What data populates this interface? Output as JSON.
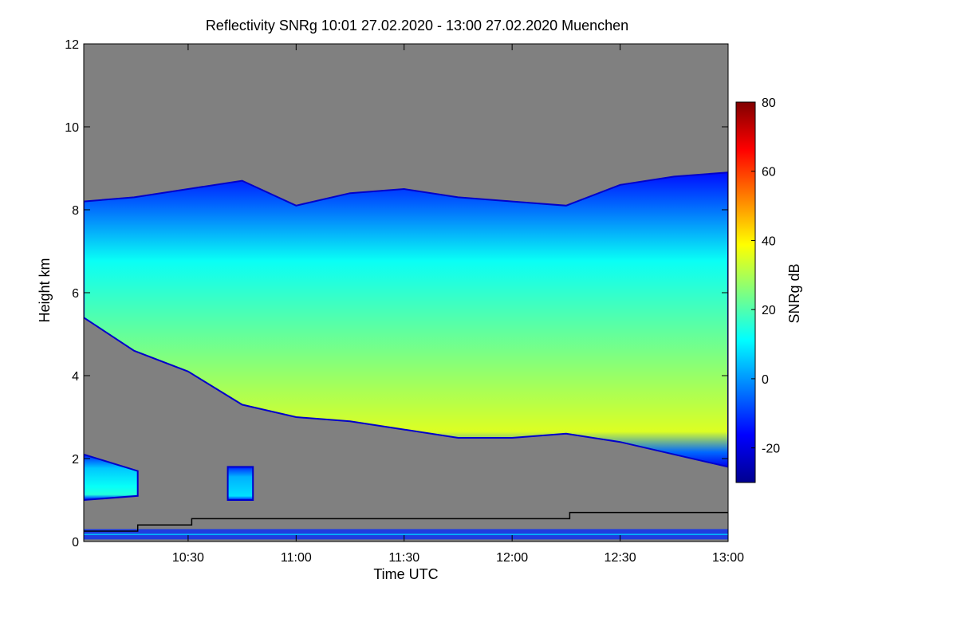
{
  "chart_data": {
    "type": "heatmap",
    "title": "Reflectivity SNRg   10:01 27.02.2020 - 13:00 27.02.2020 Muenchen",
    "xlabel": "Time UTC",
    "ylabel": "Height km",
    "x_range": [
      "10:01",
      "13:00"
    ],
    "x_ticks": [
      "10:30",
      "11:00",
      "11:30",
      "12:00",
      "12:30",
      "13:00"
    ],
    "ylim": [
      0,
      12
    ],
    "y_ticks": [
      0,
      2,
      4,
      6,
      8,
      10,
      12
    ],
    "colorbar": {
      "label": "SNRg dB",
      "range": [
        -30,
        80
      ],
      "ticks": [
        -20,
        0,
        20,
        40,
        60,
        80
      ],
      "colormap": "jet"
    },
    "background_color": "#808080",
    "layers": [
      {
        "feature": "cloud",
        "time": [
          "10:01",
          "10:15",
          "10:30",
          "10:45",
          "11:00",
          "11:15",
          "11:30",
          "11:45",
          "12:00",
          "12:15",
          "12:30",
          "12:45",
          "13:00"
        ],
        "top_km": [
          8.2,
          8.3,
          8.5,
          8.7,
          8.1,
          8.4,
          8.5,
          8.3,
          8.2,
          8.1,
          8.6,
          8.8,
          8.9
        ],
        "base_km": [
          5.4,
          4.6,
          4.1,
          3.3,
          3.0,
          2.9,
          2.7,
          2.5,
          2.5,
          2.6,
          2.4,
          2.1,
          1.8
        ],
        "peak_snr_db": 35
      },
      {
        "feature": "low-cloud-patch",
        "time": [
          "10:01",
          "10:16"
        ],
        "top_km": [
          2.1,
          1.7
        ],
        "base_km": [
          1.0,
          1.1
        ],
        "peak_snr_db": 15
      },
      {
        "feature": "low-cloud-patch",
        "time": [
          "10:41",
          "10:48"
        ],
        "top_km": [
          1.8,
          1.8
        ],
        "base_km": [
          1.0,
          1.0
        ],
        "peak_snr_db": 8
      }
    ],
    "step_line": {
      "color": "#000000",
      "time": [
        "10:01",
        "10:16",
        "10:16",
        "10:31",
        "10:31",
        "12:16",
        "12:16",
        "13:00"
      ],
      "km": [
        0.25,
        0.25,
        0.4,
        0.4,
        0.55,
        0.55,
        0.7,
        0.7
      ]
    },
    "grid": false,
    "legend": "none"
  }
}
